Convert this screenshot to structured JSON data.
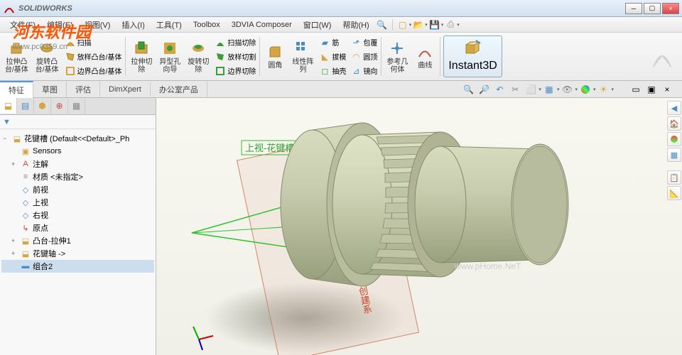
{
  "app": {
    "title": "SOLIDWORKS"
  },
  "watermarks": {
    "site": "河东软件园",
    "url": "www.pc0359.cn",
    "center": "www.pHome.NeT"
  },
  "menu": {
    "items": [
      "文件(F)",
      "编辑(E)",
      "视图(V)",
      "插入(I)",
      "工具(T)",
      "Toolbox",
      "3DVIA Composer",
      "窗口(W)",
      "帮助(H)"
    ]
  },
  "quick_icons": [
    "new",
    "open",
    "save",
    "print",
    "refresh",
    "opts",
    "color"
  ],
  "ribbon": {
    "groups": [
      {
        "big": [
          {
            "k": "extrude",
            "label": "拉伸凸\n台/基体",
            "color": "#d4a544"
          },
          {
            "k": "revolve",
            "label": "旋转凸\n台/基体",
            "color": "#d4a544"
          }
        ],
        "small": [
          {
            "k": "sweep",
            "label": "扫描",
            "color": "#d4a544"
          },
          {
            "k": "loft",
            "label": "放样凸台/基体",
            "color": "#d4a544"
          },
          {
            "k": "boundary",
            "label": "边界凸台/基体",
            "color": "#d4a544"
          }
        ]
      },
      {
        "big": [
          {
            "k": "cut-ext",
            "label": "拉伸切\n除",
            "color": "#3a9c3a"
          },
          {
            "k": "hole",
            "label": "异型孔\n向导",
            "color": "#3a9c3a"
          },
          {
            "k": "cut-rev",
            "label": "旋转切\n除",
            "color": "#3a9c3a"
          }
        ],
        "small": [
          {
            "k": "cut-sweep",
            "label": "扫描切除",
            "color": "#3a9c3a"
          },
          {
            "k": "cut-loft",
            "label": "放样切割",
            "color": "#3a9c3a"
          },
          {
            "k": "cut-bound",
            "label": "边界切除",
            "color": "#3a9c3a"
          }
        ]
      },
      {
        "big": [
          {
            "k": "fillet",
            "label": "圆角",
            "color": "#d4a544"
          },
          {
            "k": "pattern",
            "label": "线性阵\n列",
            "color": "#4a8cc4"
          }
        ],
        "small": [
          {
            "k": "rib",
            "label": "筋",
            "color": "#4a8cc4"
          },
          {
            "k": "draft",
            "label": "拔模",
            "color": "#d4a544"
          },
          {
            "k": "shell",
            "label": "抽壳",
            "color": "#3a9c3a"
          },
          {
            "k": "wrap",
            "label": "包覆",
            "color": "#4a8cc4"
          },
          {
            "k": "dome",
            "label": "圆顶",
            "color": "#d4a544"
          },
          {
            "k": "mirror",
            "label": "镜向",
            "color": "#4a8cc4"
          }
        ]
      },
      {
        "big": [
          {
            "k": "refgeom",
            "label": "参考几\n何体",
            "color": "#4a8cc4"
          },
          {
            "k": "curve",
            "label": "曲线",
            "color": "#c4544a"
          }
        ]
      },
      {
        "special": {
          "k": "instant3d",
          "label": "Instant3D"
        }
      }
    ]
  },
  "tabs": [
    "特征",
    "草图",
    "评估",
    "DimXpert",
    "办公室产品"
  ],
  "active_tab": 0,
  "tree": {
    "root": "花键槽  (Default<<Default>_Ph",
    "items": [
      {
        "exp": "",
        "icon": "sensor",
        "label": "Sensors",
        "ind": 1,
        "color": "#d4a544"
      },
      {
        "exp": "+",
        "icon": "annot",
        "label": "注解",
        "ind": 1,
        "color": "#c44"
      },
      {
        "exp": "",
        "icon": "mat",
        "label": "材质 <未指定>",
        "ind": 1,
        "color": "#888"
      },
      {
        "exp": "",
        "icon": "plane",
        "label": "前视",
        "ind": 1,
        "color": "#4a8cc4"
      },
      {
        "exp": "",
        "icon": "plane",
        "label": "上视",
        "ind": 1,
        "color": "#4a8cc4"
      },
      {
        "exp": "",
        "icon": "plane",
        "label": "右视",
        "ind": 1,
        "color": "#4a8cc4"
      },
      {
        "exp": "",
        "icon": "origin",
        "label": "原点",
        "ind": 1,
        "color": "#c44"
      },
      {
        "exp": "+",
        "icon": "feat",
        "label": "凸台-拉伸1",
        "ind": 1,
        "color": "#d4a544"
      },
      {
        "exp": "+",
        "icon": "feat",
        "label": "花键轴 ->",
        "ind": 1,
        "color": "#d4a544"
      },
      {
        "exp": "",
        "icon": "folder",
        "label": "组合2",
        "ind": 1,
        "sel": true,
        "color": "#4a8cc4"
      }
    ]
  },
  "viewport": {
    "plane_label": "上视-花键槽",
    "sketch_label": "花键-创建系",
    "model": {
      "body_color": "#c8ccae",
      "body_shade": "#a8ac8e",
      "body_hilite": "#d8dcbe",
      "plane_color": "#30c030",
      "sketch_color": "#cc8866",
      "shadow": "#808074"
    }
  }
}
